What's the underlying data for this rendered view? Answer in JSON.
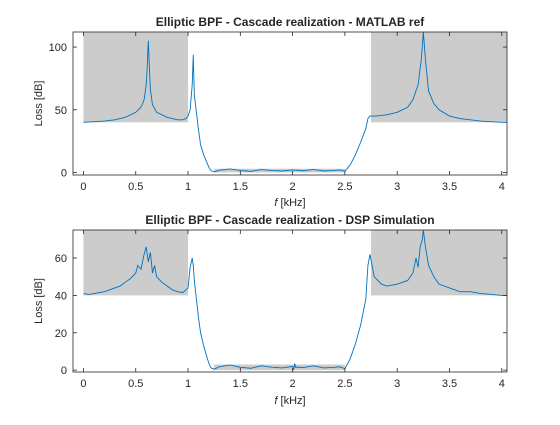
{
  "figure": {
    "background": "#ffffff"
  },
  "chart_data": [
    {
      "type": "line",
      "title": "Elliptic BPF - Cascade realization - MATLAB ref",
      "xlabel_var": "f",
      "xlabel_unit": "[kHz]",
      "ylabel": "Loss [dB]",
      "xlim": [
        -0.1,
        4.05
      ],
      "ylim": [
        -2,
        112
      ],
      "xticks": [
        0,
        0.5,
        1,
        1.5,
        2,
        2.5,
        3,
        3.5,
        4
      ],
      "xtick_labels": [
        "0",
        "0.5",
        "1",
        "1.5",
        "2",
        "2.5",
        "3",
        "3.5",
        "4"
      ],
      "yticks": [
        0,
        50,
        100
      ],
      "ytick_labels": [
        "0",
        "50",
        "100"
      ],
      "grid": false,
      "line_color": "#0072BD",
      "spec_color": "#cccccc",
      "spec_regions": [
        {
          "x": [
            0,
            1
          ],
          "y": [
            40,
            112
          ]
        },
        {
          "x": [
            2.75,
            4.05
          ],
          "y": [
            40,
            112
          ]
        },
        {
          "x": [
            1.25,
            2.5
          ],
          "y": [
            0,
            3
          ]
        }
      ],
      "series": [
        {
          "x": [
            0,
            0.1,
            0.2,
            0.3,
            0.4,
            0.5,
            0.55,
            0.58,
            0.6,
            0.61,
            0.62,
            0.63,
            0.64,
            0.66,
            0.7,
            0.8,
            0.9,
            0.95,
            0.98,
            1.0,
            1.02,
            1.04,
            1.05,
            1.06,
            1.08,
            1.1,
            1.12,
            1.15,
            1.18,
            1.2,
            1.22,
            1.25,
            1.3,
            1.4,
            1.5,
            1.6,
            1.7,
            1.8,
            1.9,
            2.0,
            2.1,
            2.2,
            2.3,
            2.4,
            2.45,
            2.5,
            2.55,
            2.6,
            2.65,
            2.7,
            2.72,
            2.74,
            2.8,
            2.9,
            3.0,
            3.1,
            3.15,
            3.2,
            3.23,
            3.25,
            3.27,
            3.3,
            3.35,
            3.4,
            3.5,
            3.6,
            3.8,
            4.0,
            4.05
          ],
          "y": [
            40,
            40.5,
            41,
            42,
            44,
            48,
            52,
            58,
            70,
            85,
            105,
            85,
            66,
            54,
            48,
            44,
            42,
            42,
            43,
            45,
            50,
            70,
            94,
            62,
            48,
            34,
            22,
            14,
            8,
            4,
            1.5,
            0.5,
            1.8,
            2.8,
            1.6,
            0.9,
            2.3,
            1.6,
            1.2,
            2.0,
            1.4,
            2.4,
            1.2,
            1.6,
            2.0,
            1.0,
            6,
            14,
            24,
            35,
            43,
            45,
            45,
            46,
            48,
            52,
            58,
            70,
            90,
            113,
            90,
            65,
            55,
            50,
            45,
            43,
            41,
            40,
            40
          ]
        }
      ]
    },
    {
      "type": "line",
      "title": "Elliptic BPF - Cascade realization - DSP Simulation",
      "xlabel_var": "f",
      "xlabel_unit": "[kHz]",
      "ylabel": "Loss [dB]",
      "xlim": [
        -0.1,
        4.05
      ],
      "ylim": [
        -1,
        75
      ],
      "xticks": [
        0,
        0.5,
        1,
        1.5,
        2,
        2.5,
        3,
        3.5,
        4
      ],
      "xtick_labels": [
        "0",
        "0.5",
        "1",
        "1.5",
        "2",
        "2.5",
        "3",
        "3.5",
        "4"
      ],
      "yticks": [
        0,
        20,
        40,
        60
      ],
      "ytick_labels": [
        "0",
        "20",
        "40",
        "60"
      ],
      "grid": false,
      "line_color": "#0072BD",
      "spec_color": "#cccccc",
      "spec_regions": [
        {
          "x": [
            0,
            1
          ],
          "y": [
            40,
            75
          ]
        },
        {
          "x": [
            2.75,
            4.05
          ],
          "y": [
            40,
            75
          ]
        },
        {
          "x": [
            1.25,
            2.5
          ],
          "y": [
            0,
            3
          ]
        }
      ],
      "series": [
        {
          "x": [
            0,
            0.05,
            0.1,
            0.15,
            0.2,
            0.25,
            0.3,
            0.35,
            0.4,
            0.45,
            0.5,
            0.52,
            0.55,
            0.58,
            0.6,
            0.62,
            0.64,
            0.66,
            0.68,
            0.7,
            0.75,
            0.8,
            0.85,
            0.9,
            0.95,
            1.0,
            1.02,
            1.04,
            1.05,
            1.06,
            1.08,
            1.1,
            1.12,
            1.15,
            1.18,
            1.2,
            1.22,
            1.25,
            1.3,
            1.4,
            1.5,
            1.6,
            1.7,
            1.8,
            1.9,
            2.0,
            2.01,
            2.02,
            2.03,
            2.05,
            2.1,
            2.2,
            2.3,
            2.4,
            2.45,
            2.5,
            2.55,
            2.6,
            2.65,
            2.7,
            2.72,
            2.74,
            2.78,
            2.85,
            2.9,
            3.0,
            3.05,
            3.1,
            3.15,
            3.18,
            3.2,
            3.22,
            3.24,
            3.25,
            3.27,
            3.3,
            3.35,
            3.4,
            3.5,
            3.6,
            3.7,
            3.8,
            3.9,
            4.0,
            4.05
          ],
          "y": [
            41,
            40.5,
            41,
            41.5,
            42,
            43,
            44,
            45,
            47,
            49,
            52,
            56,
            54,
            62,
            66,
            58,
            63,
            52,
            56,
            50,
            47,
            45,
            43,
            42,
            41.5,
            44,
            55,
            60,
            56,
            48,
            38,
            28,
            20,
            13,
            7,
            3.5,
            1.2,
            0.5,
            1.8,
            2.8,
            1.5,
            1.0,
            2.3,
            1.6,
            1.2,
            2.0,
            0.4,
            3.5,
            1.4,
            1.6,
            1.4,
            2.3,
            1.2,
            1.5,
            1.8,
            0.8,
            6,
            14,
            24,
            38,
            56,
            62,
            50,
            46,
            45,
            46,
            47,
            48,
            52,
            60,
            55,
            66,
            70,
            75,
            66,
            56,
            50,
            46,
            44,
            42,
            42,
            41,
            40.5,
            40,
            40
          ]
        }
      ]
    }
  ]
}
